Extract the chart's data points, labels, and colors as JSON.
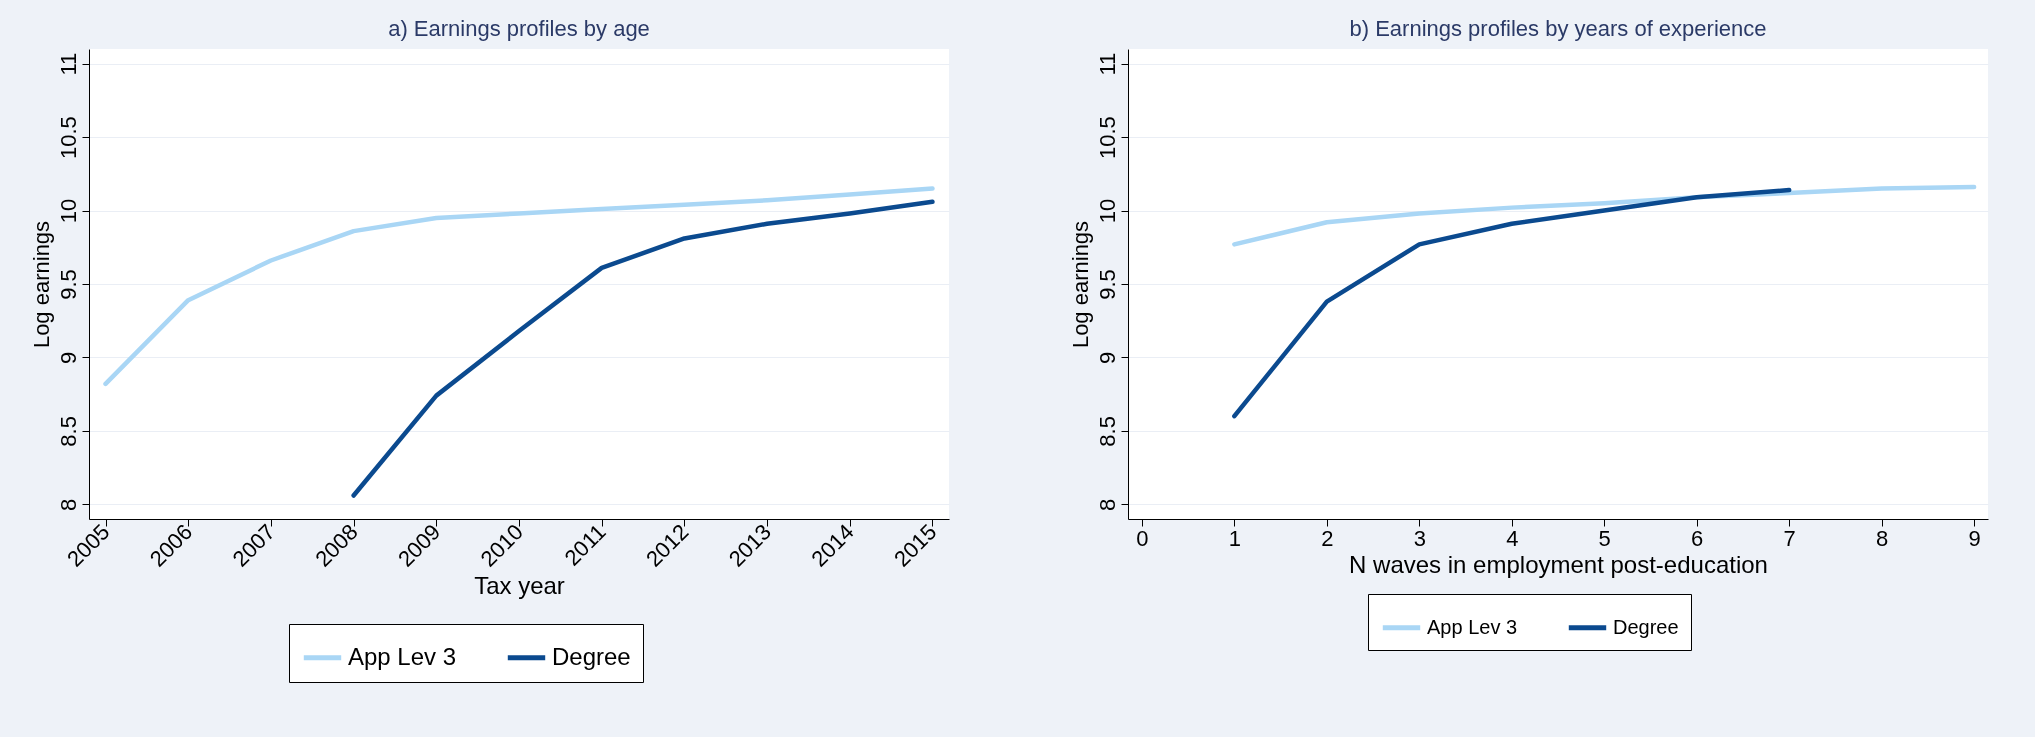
{
  "chart_data": [
    {
      "type": "line",
      "title": "a) Earnings profiles by age",
      "xlabel": "Tax year",
      "ylabel": "Log earnings",
      "x": [
        2005,
        2006,
        2007,
        2008,
        2009,
        2010,
        2011,
        2012,
        2013,
        2014,
        2015
      ],
      "xlim": [
        2004.8,
        2015.2
      ],
      "xticks": [
        2005,
        2006,
        2007,
        2008,
        2009,
        2010,
        2011,
        2012,
        2013,
        2014,
        2015
      ],
      "ylim": [
        7.9,
        11.1
      ],
      "yticks": [
        8,
        8.5,
        9,
        9.5,
        10,
        10.5,
        11
      ],
      "grid": "y",
      "legend": "bottom",
      "line_style": "solid",
      "series": [
        {
          "name": "App Lev 3",
          "color": "#a9d6f5",
          "values": [
            8.82,
            9.39,
            9.66,
            9.86,
            9.95,
            9.98,
            10.01,
            10.04,
            10.07,
            10.11,
            10.15
          ]
        },
        {
          "name": "Degree",
          "color": "#0b4a8f",
          "values": [
            null,
            null,
            null,
            8.06,
            8.74,
            9.18,
            9.61,
            9.81,
            9.91,
            9.98,
            10.06
          ]
        }
      ]
    },
    {
      "type": "line",
      "title": "b) Earnings profiles by years of experience",
      "xlabel": "N waves in employment post-education",
      "ylabel": "Log earnings",
      "x": [
        1,
        2,
        3,
        4,
        5,
        6,
        7,
        8,
        9
      ],
      "xlim": [
        -0.15,
        9.15
      ],
      "xticks": [
        0,
        1,
        2,
        3,
        4,
        5,
        6,
        7,
        8,
        9
      ],
      "ylim": [
        7.9,
        11.1
      ],
      "yticks": [
        8,
        8.5,
        9,
        9.5,
        10,
        10.5,
        11
      ],
      "grid": "y",
      "legend": "bottom",
      "line_style": "solid",
      "series": [
        {
          "name": "App Lev 3",
          "color": "#a9d6f5",
          "values": [
            9.77,
            9.92,
            9.98,
            10.02,
            10.05,
            10.09,
            10.12,
            10.15,
            10.16
          ]
        },
        {
          "name": "Degree",
          "color": "#0b4a8f",
          "values": [
            8.6,
            9.38,
            9.77,
            9.91,
            10.0,
            10.09,
            10.14,
            null,
            null
          ]
        }
      ]
    }
  ]
}
